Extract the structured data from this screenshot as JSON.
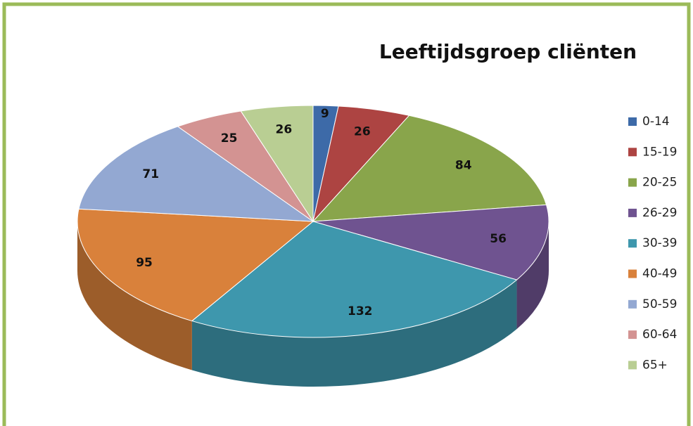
{
  "chart_data": {
    "type": "pie3d",
    "title": "Leeftijdsgroep cliënten",
    "categories": [
      "0-14",
      "15-19",
      "20-25",
      "26-29",
      "30-39",
      "40-49",
      "50-59",
      "60-64",
      "65+"
    ],
    "values": [
      9,
      26,
      84,
      56,
      132,
      95,
      71,
      25,
      26
    ],
    "colors": [
      "#3d6aa8",
      "#ad4442",
      "#89a54b",
      "#6f5390",
      "#3e97ad",
      "#d9813b",
      "#93a8d2",
      "#d39392",
      "#b9ce93"
    ],
    "legend": "right"
  }
}
